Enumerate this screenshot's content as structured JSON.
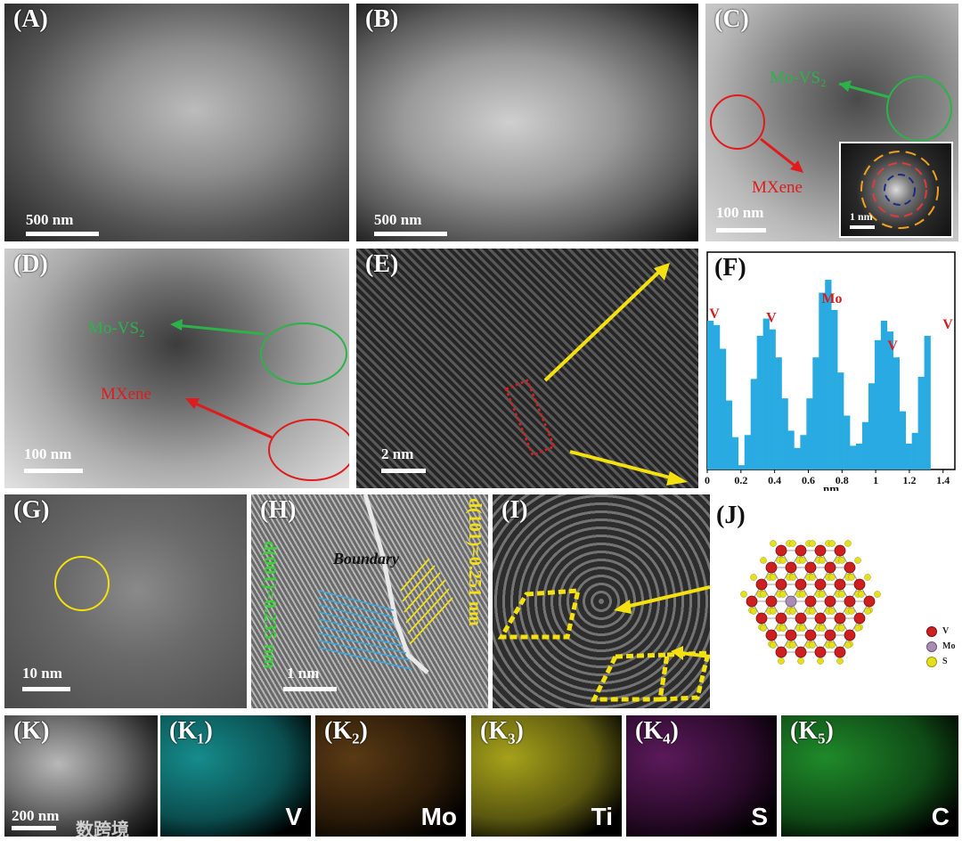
{
  "panels": {
    "A": {
      "label": "(A)",
      "scale": "500 nm"
    },
    "B": {
      "label": "(B)",
      "scale": "500 nm"
    },
    "C": {
      "label": "(C)",
      "scale": "100 nm",
      "inset_scale": "1 nm",
      "ann_mo": "Mo-VS₂",
      "ann_mx": "MXene"
    },
    "D": {
      "label": "(D)",
      "scale": "100 nm",
      "ann_mo": "Mo-VS₂",
      "ann_mx": "MXene"
    },
    "E": {
      "label": "(E)",
      "scale": "2 nm"
    },
    "F": {
      "label": "(F)"
    },
    "G": {
      "label": "(G)",
      "scale": "10 nm"
    },
    "H": {
      "label": "(H)",
      "scale": "1 nm",
      "boundary": "Boundary",
      "d_left": "d(001)=0.235 nm",
      "d_right": "d(101)=0.251 nm"
    },
    "I": {
      "label": "(I)"
    },
    "J": {
      "label": "(J)",
      "legend": [
        "V",
        "Mo",
        "S"
      ]
    },
    "K": {
      "label": "(K)",
      "scale": "200 nm",
      "watermark": "数跨境"
    },
    "K1": {
      "label": "(K₁)",
      "element": "V"
    },
    "K2": {
      "label": "(K₂)",
      "element": "Mo"
    },
    "K3": {
      "label": "(K₃)",
      "element": "Ti"
    },
    "K4": {
      "label": "(K₄)",
      "element": "S"
    },
    "K5": {
      "label": "(K₅)",
      "element": "C"
    }
  },
  "colors": {
    "mo_vs2": "#2db24a",
    "mxene": "#e01b1b",
    "profile": "#29abe2",
    "V": "#cc1f1f",
    "Mo": "#a98bb3",
    "S": "#e6e01c"
  },
  "chart_data": {
    "type": "bar",
    "title": "",
    "xlabel": "nm",
    "ylabel": "",
    "xlim": [
      0,
      1.47
    ],
    "xticks": [
      "0",
      "0.2",
      "0.4",
      "0.6",
      "0.8",
      "1",
      "1.2",
      "1.4"
    ],
    "x_step": 0.0368,
    "values": [
      0.69,
      0.67,
      0.56,
      0.32,
      0.15,
      0.02,
      0.16,
      0.42,
      0.62,
      0.7,
      0.65,
      0.52,
      0.33,
      0.18,
      0.1,
      0.16,
      0.33,
      0.52,
      0.82,
      0.88,
      0.74,
      0.45,
      0.25,
      0.11,
      0.12,
      0.22,
      0.4,
      0.6,
      0.69,
      0.64,
      0.52,
      0.27,
      0.12,
      0.17,
      0.43,
      0.62
    ],
    "peak_labels": [
      {
        "text": "V",
        "x": 0.02
      },
      {
        "text": "V",
        "x": 0.38
      },
      {
        "text": "Mo",
        "x": 0.74
      },
      {
        "text": "V",
        "x": 1.1
      },
      {
        "text": "V",
        "x": 1.45
      }
    ]
  }
}
